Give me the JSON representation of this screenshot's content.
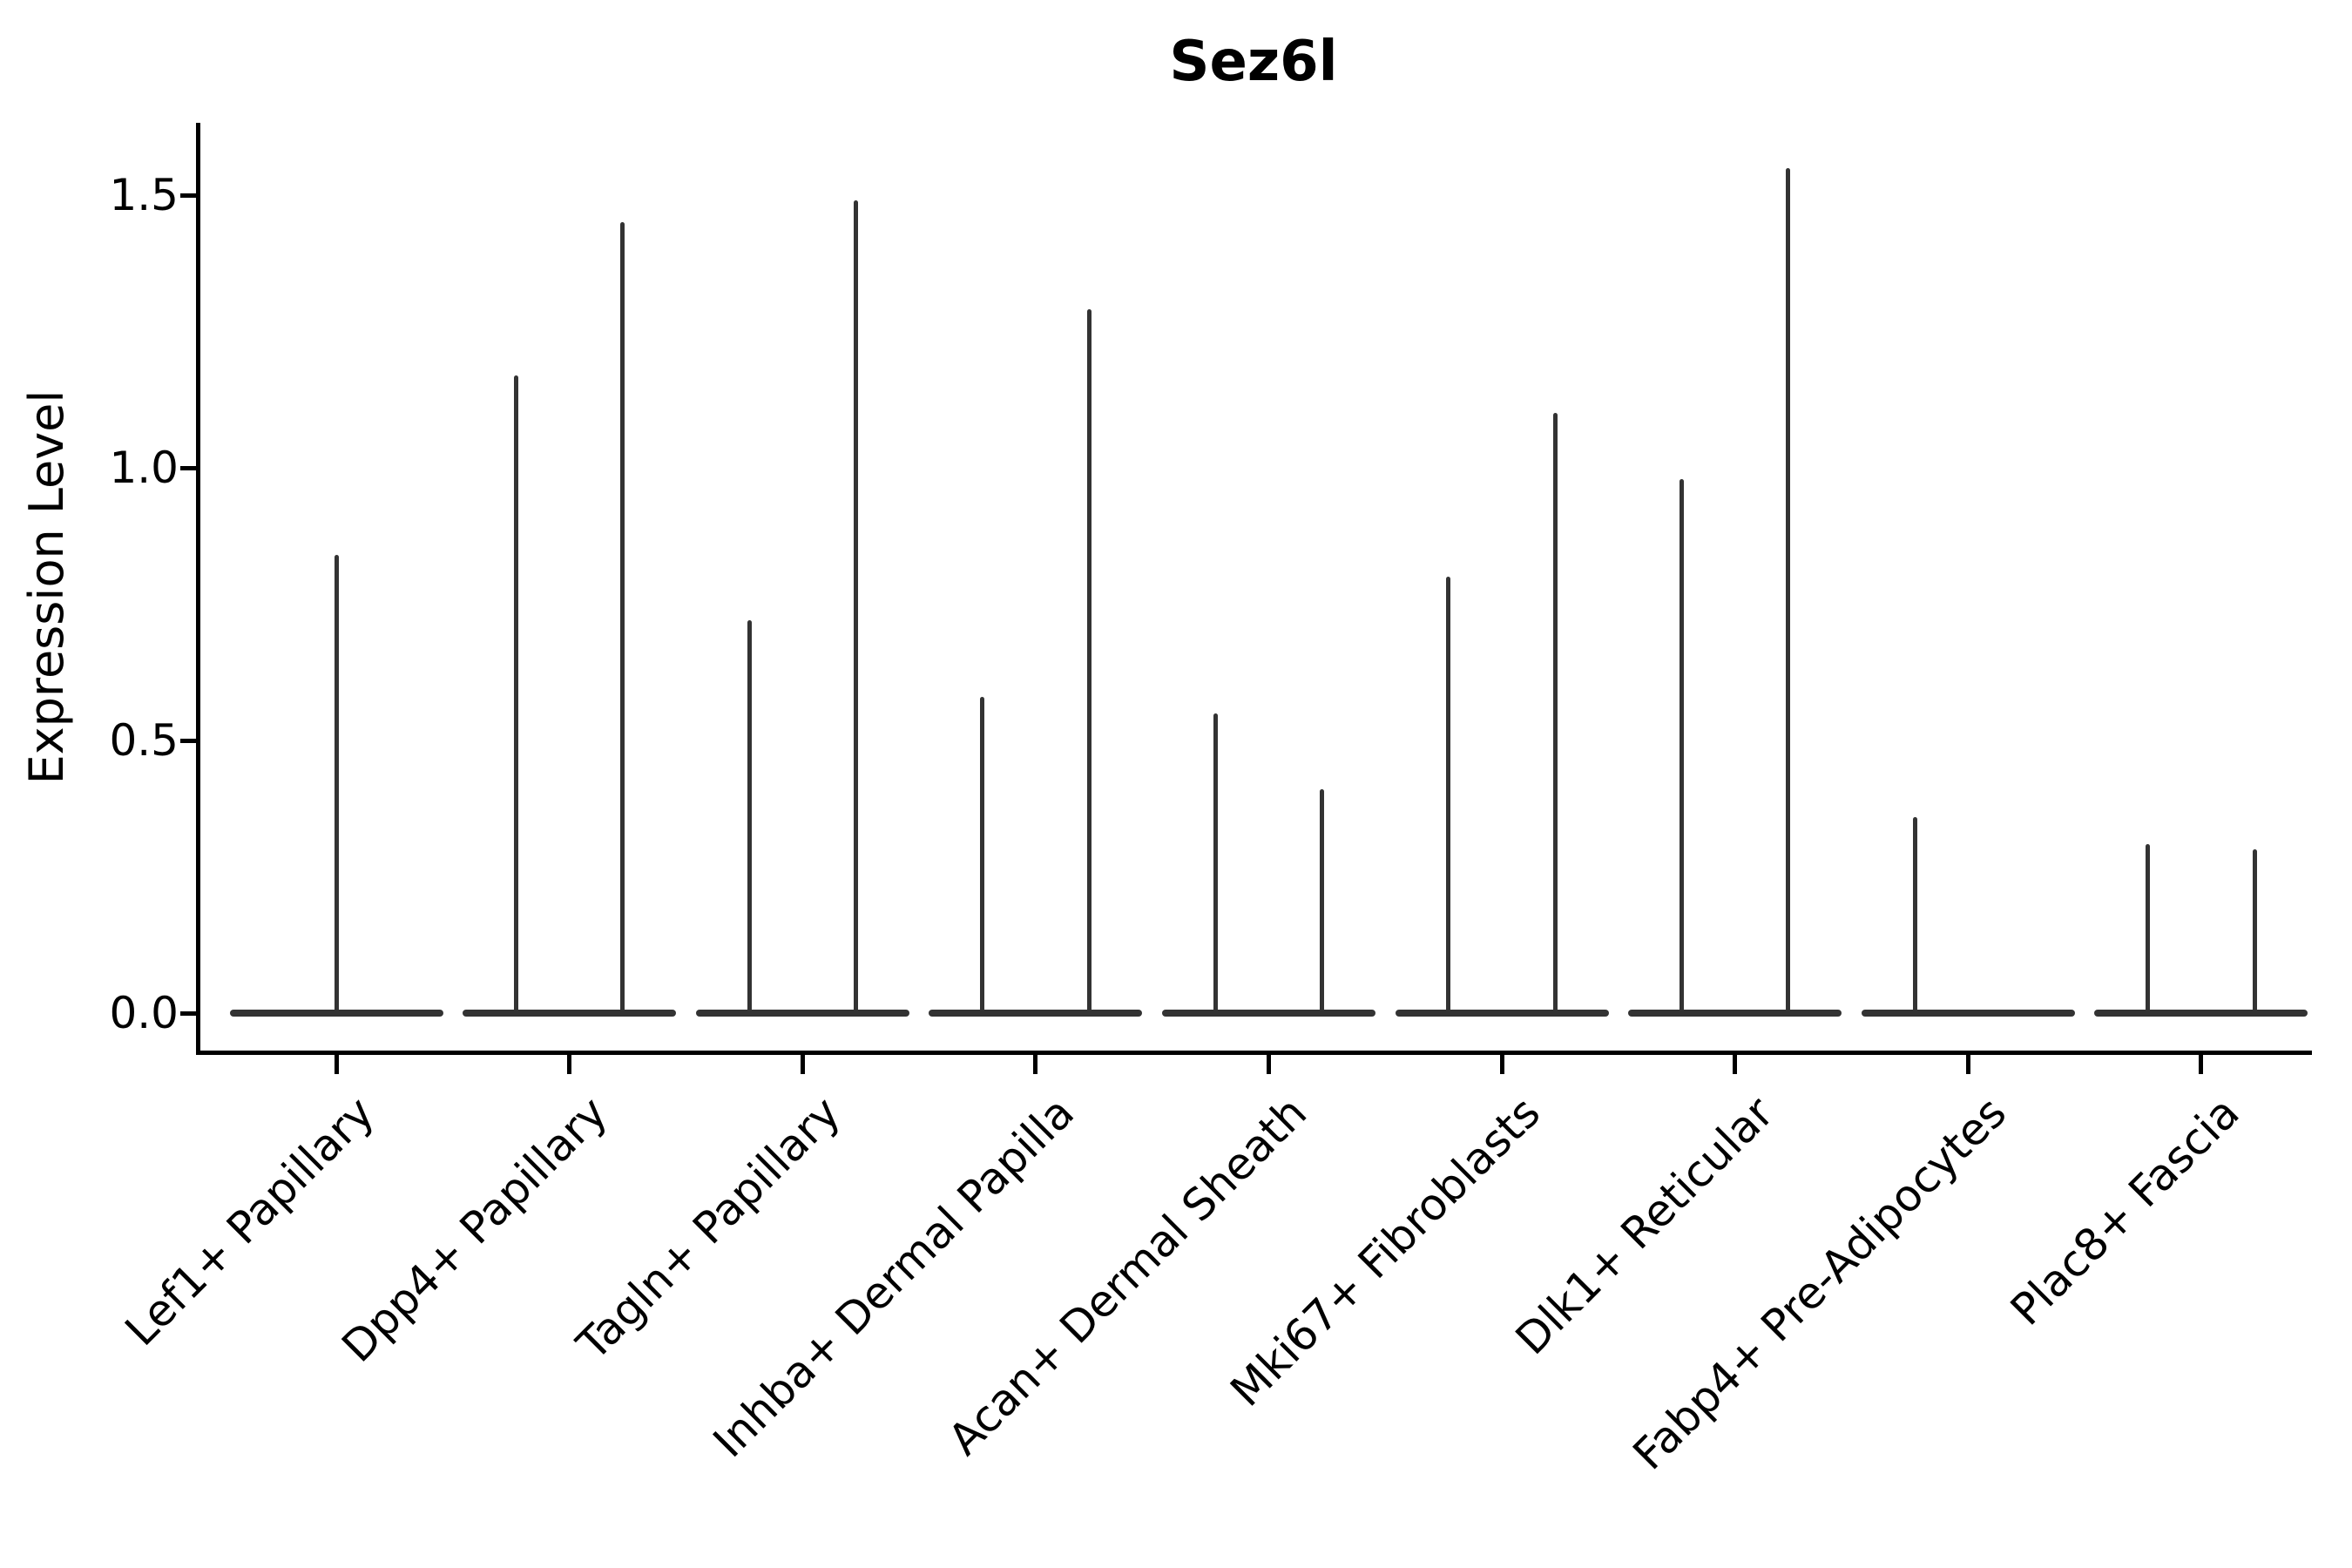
{
  "chart_data": {
    "type": "violin",
    "title": "Sez6l",
    "xlabel": "",
    "ylabel": "Expression Level",
    "ylim": [
      0,
      1.63
    ],
    "yticks": [
      0.0,
      0.5,
      1.0,
      1.5
    ],
    "ytick_labels": [
      "0.0",
      "0.5",
      "1.0",
      "1.5"
    ],
    "grid": false,
    "legend_position": "none",
    "description": "Violin plot of Sez6l expression; each category shows flat violins at 0 with thin spikes reaching the maximum expression value. Most categories contain two side-by-side (dodged) violins.",
    "categories": [
      {
        "label": "Lef1+ Papillary",
        "violin_max_values": [
          0.84
        ]
      },
      {
        "label": "Dpp4+ Papillary",
        "violin_max_values": [
          1.17,
          1.45
        ]
      },
      {
        "label": "Tagln+ Papillary",
        "violin_max_values": [
          0.72,
          1.49
        ]
      },
      {
        "label": "Inhba+ Dermal Papilla",
        "violin_max_values": [
          0.58,
          1.29
        ]
      },
      {
        "label": "Acan+ Dermal Sheath",
        "violin_max_values": [
          0.55,
          0.41
        ]
      },
      {
        "label": "Mki67+ Fibroblasts",
        "violin_max_values": [
          0.8,
          1.1
        ]
      },
      {
        "label": "Dlk1+ Reticular",
        "violin_max_values": [
          0.98,
          1.55
        ]
      },
      {
        "label": "Fabp4+ Pre-Adipocytes",
        "violin_max_values": [
          0.36,
          0.0
        ]
      },
      {
        "label": "Plac8+ Fascia",
        "violin_max_values": [
          0.31,
          0.3
        ]
      }
    ],
    "colors": {
      "violin": "#333333",
      "axis": "#000000",
      "text": "#000000",
      "background": "#ffffff"
    }
  }
}
